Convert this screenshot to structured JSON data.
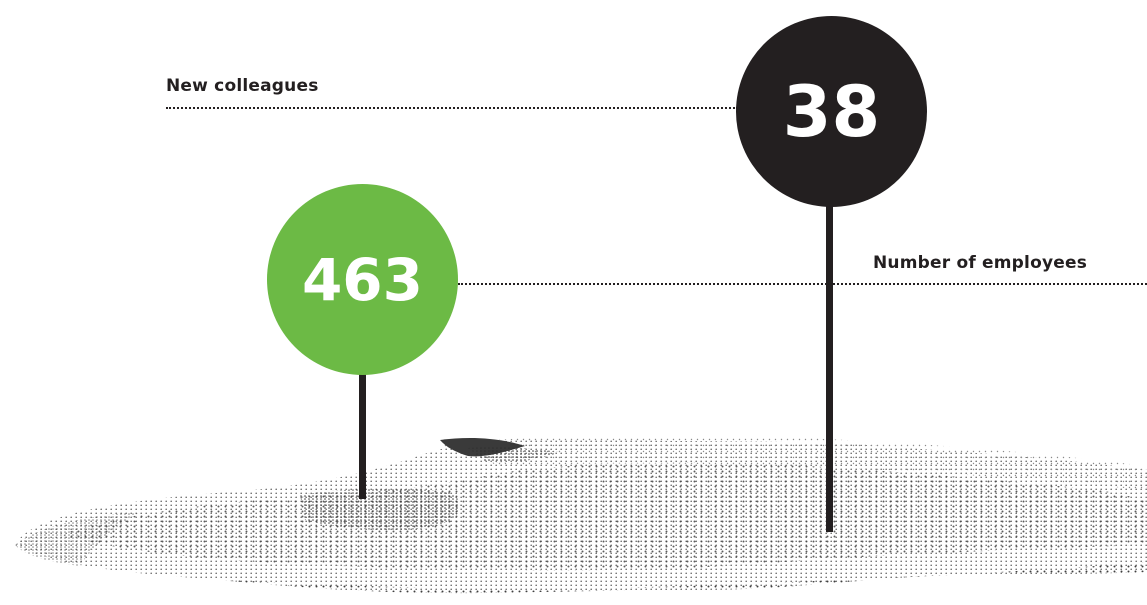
{
  "stats": [
    {
      "label": "New colleagues",
      "value": "38",
      "circle_color": "#231f20"
    },
    {
      "label": "Number of employees",
      "value": "463",
      "circle_color": "#6cba45"
    }
  ],
  "colors": {
    "ink": "#231f20",
    "green": "#6cba45",
    "terrain_dots": "#4a4a4a",
    "background": "#ffffff"
  }
}
